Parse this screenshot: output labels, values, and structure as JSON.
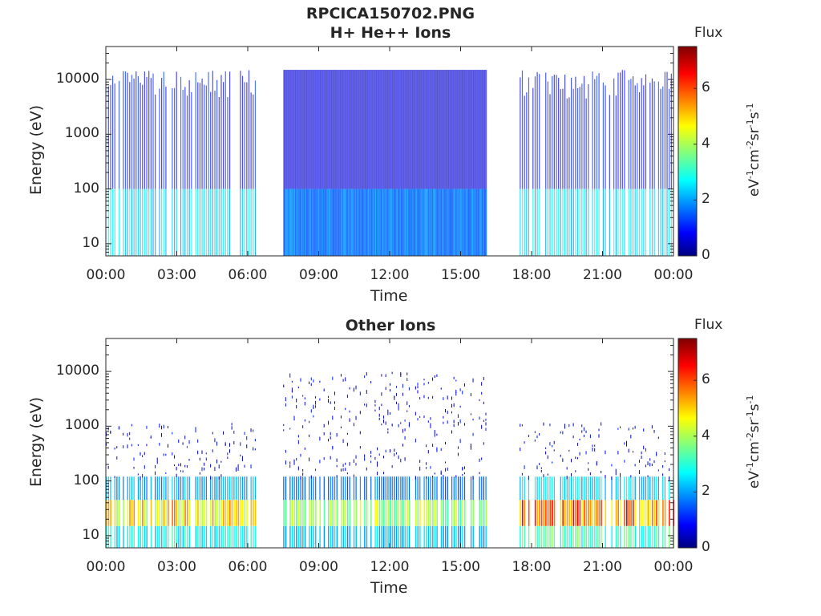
{
  "figure": {
    "title_line1": "RPCICA150702.PNG",
    "title_line2": "H+ He++ Ions",
    "bottom_title": "Other Ions",
    "colorbar_label": "Flux",
    "colorbar_units_prefix": "eV",
    "colorbar_units_parts": [
      "-1",
      "cm",
      "-2",
      "sr",
      "-1",
      "s",
      "-1"
    ]
  },
  "chart_data": [
    {
      "type": "heatmap",
      "title": "H+ He++ Ions",
      "xlabel": "Time",
      "ylabel": "Energy (eV)",
      "x_ticks": [
        "00:00",
        "03:00",
        "06:00",
        "09:00",
        "12:00",
        "15:00",
        "18:00",
        "21:00",
        "00:00"
      ],
      "y_ticks": [
        "10",
        "100",
        "1000",
        "10000"
      ],
      "y_scale": "log",
      "ylim": [
        6,
        40000
      ],
      "colorbar": {
        "label": "Flux",
        "ticks": [
          "0",
          "2",
          "4",
          "6"
        ],
        "range": [
          0,
          7.5
        ],
        "colormap": "jet"
      },
      "data_gaps_hours": [
        [
          6.3,
          7.5
        ],
        [
          16.1,
          17.5
        ]
      ],
      "observations": [
        {
          "hours": [
            0,
            6.3
          ],
          "pattern": "sparse vertical streaks",
          "low_energy_flux": 2.5,
          "high_energy_flux": 1.0
        },
        {
          "hours": [
            7.5,
            16.1
          ],
          "pattern": "dense coverage up to ~15000 eV",
          "low_energy_flux": 1.8,
          "high_energy_flux": 0.6
        },
        {
          "hours": [
            17.5,
            24
          ],
          "pattern": "sparse vertical streaks",
          "low_energy_flux": 2.5,
          "high_energy_flux": 1.0
        }
      ]
    },
    {
      "type": "heatmap",
      "title": "Other Ions",
      "xlabel": "Time",
      "ylabel": "Energy (eV)",
      "x_ticks": [
        "00:00",
        "03:00",
        "06:00",
        "09:00",
        "12:00",
        "15:00",
        "18:00",
        "21:00",
        "00:00"
      ],
      "y_ticks": [
        "10",
        "100",
        "1000",
        "10000"
      ],
      "y_scale": "log",
      "ylim": [
        6,
        40000
      ],
      "colorbar": {
        "label": "Flux",
        "ticks": [
          "0",
          "2",
          "4",
          "6"
        ],
        "range": [
          0,
          7.5
        ],
        "colormap": "jet"
      },
      "data_gaps_hours": [
        [
          6.3,
          7.5
        ],
        [
          16.1,
          17.5
        ]
      ],
      "observations": [
        {
          "hours": [
            0,
            6.3
          ],
          "pattern": "band 15-45 eV",
          "band_flux": 5.5
        },
        {
          "hours": [
            7.5,
            16.1
          ],
          "pattern": "band 15-45 eV, scattered to 10000 eV",
          "band_flux": 4.5
        },
        {
          "hours": [
            17.5,
            24
          ],
          "pattern": "band 15-45 eV",
          "band_flux": 6.5
        }
      ]
    }
  ]
}
